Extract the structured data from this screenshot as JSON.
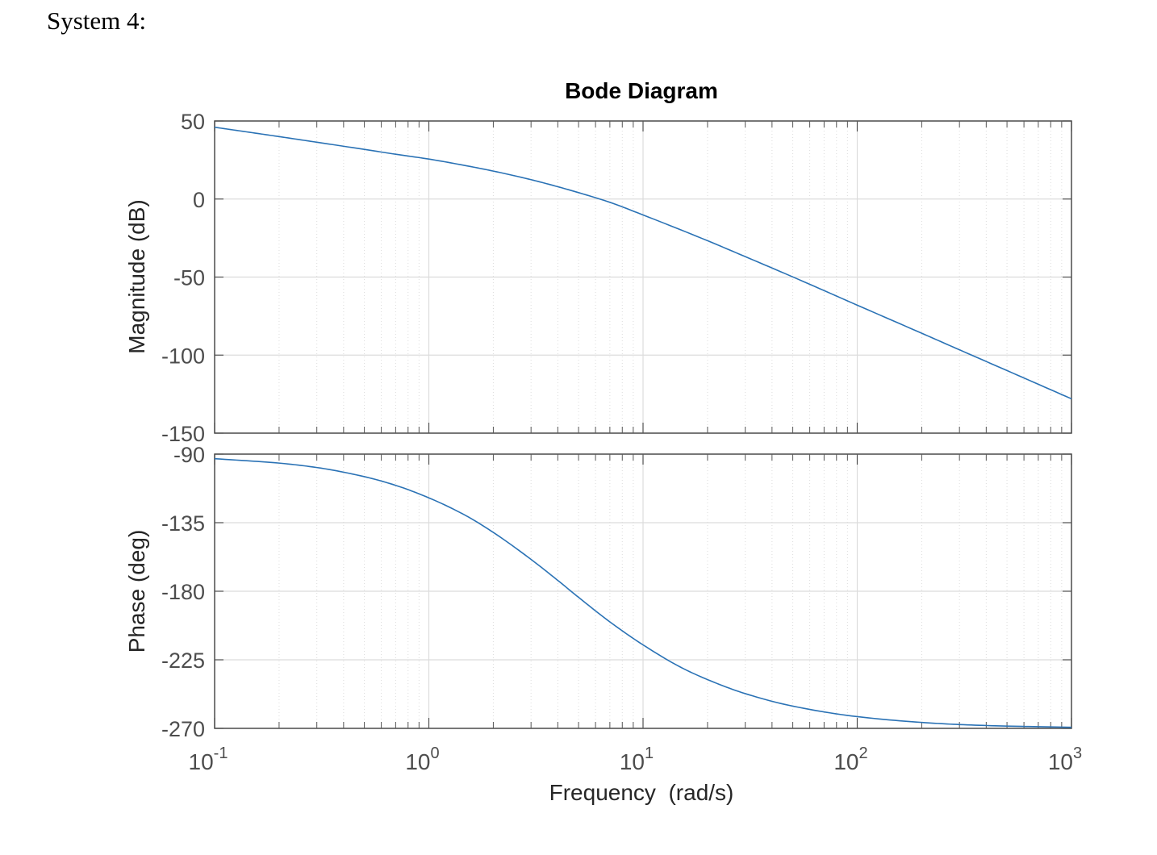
{
  "page": {
    "heading": "System 4:"
  },
  "chart_data": {
    "type": "line",
    "title": "Bode Diagram",
    "xlabel": "Frequency  (rad/s)",
    "xscale": "log",
    "xlim": [
      0.1,
      1000
    ],
    "x_ticks": [
      {
        "base": "10",
        "exp": "-1"
      },
      {
        "base": "10",
        "exp": "0"
      },
      {
        "base": "10",
        "exp": "1"
      },
      {
        "base": "10",
        "exp": "2"
      },
      {
        "base": "10",
        "exp": "3"
      }
    ],
    "grid": true,
    "color": "#2a72b5",
    "panels": [
      {
        "name": "magnitude",
        "ylabel": "Magnitude (dB)",
        "ylim": [
          -150,
          50
        ],
        "yticks": [
          50,
          0,
          -50,
          -100,
          -150
        ],
        "x": [
          0.1,
          0.15,
          0.2,
          0.3,
          0.5,
          0.7,
          1,
          1.5,
          2,
          3,
          4,
          5,
          7,
          10,
          20,
          30,
          50,
          100,
          200,
          300,
          500,
          1000
        ],
        "y": [
          46,
          42.5,
          40,
          36.4,
          31.8,
          28.7,
          25.6,
          21.3,
          17.9,
          12.4,
          7.9,
          4.1,
          -2.1,
          -10.2,
          -26.7,
          -36.9,
          -49.9,
          -68,
          -86,
          -96.6,
          -109.9,
          -128
        ]
      },
      {
        "name": "phase",
        "ylabel": "Phase (deg)",
        "ylim": [
          -270,
          -90
        ],
        "yticks": [
          -90,
          -135,
          -180,
          -225,
          -270
        ],
        "x": [
          0.1,
          0.2,
          0.3,
          0.5,
          0.7,
          1,
          1.5,
          2,
          3,
          4,
          5,
          7,
          10,
          15,
          20,
          30,
          50,
          100,
          200,
          300,
          500,
          1000
        ],
        "y": [
          -93,
          -95.9,
          -98.8,
          -104.8,
          -110.5,
          -118.7,
          -130.6,
          -141.4,
          -159.1,
          -172.9,
          -184,
          -200.1,
          -215.2,
          -229.9,
          -238,
          -247.2,
          -255.4,
          -262.3,
          -266.1,
          -267.5,
          -268.5,
          -269.3
        ]
      }
    ]
  }
}
